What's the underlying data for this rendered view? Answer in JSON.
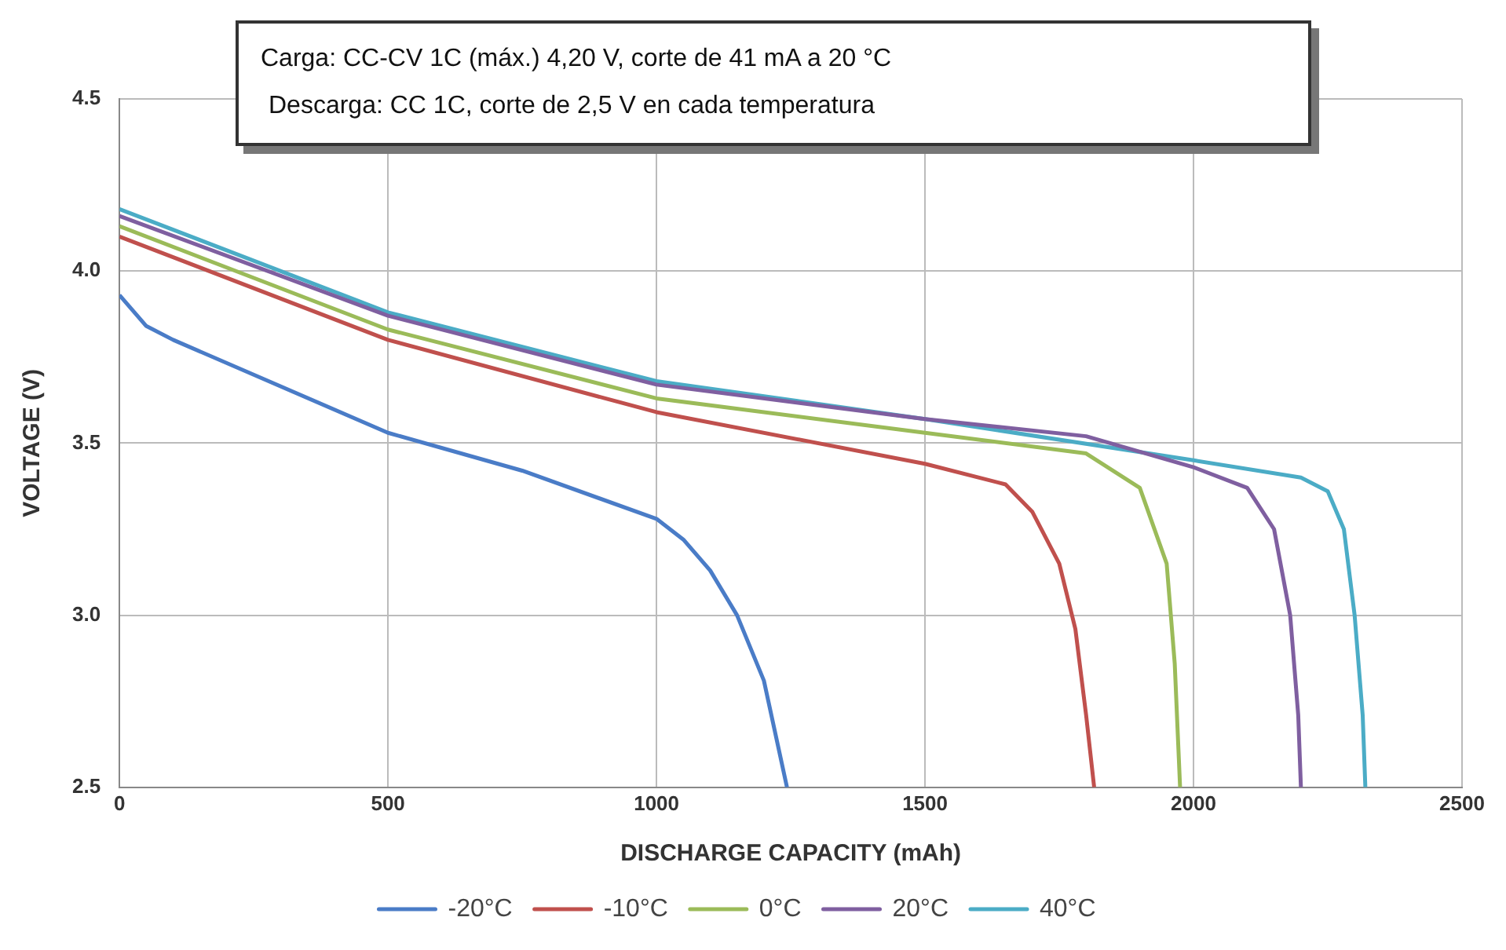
{
  "chart_data": {
    "type": "line",
    "xlabel": "DISCHARGE CAPACITY (mAh)",
    "ylabel": "VOLTAGE (V)",
    "annotations": [
      "Carga: CC-CV 1C (máx.) 4,20 V, corte de 41 mA a 20 °C",
      "Descarga: CC 1C, corte de 2,5 V en cada temperatura"
    ],
    "xlim": [
      0,
      2500
    ],
    "xticks": [
      0,
      500,
      1000,
      1500,
      2000,
      2500
    ],
    "ylim": [
      2.5,
      4.5
    ],
    "yticks": [
      {
        "value": 2.5,
        "label": "2.5"
      },
      {
        "value": 3,
        "label": "3.0"
      },
      {
        "value": 3.5,
        "label": "3.5"
      },
      {
        "value": 4,
        "label": "4.0"
      },
      {
        "value": 4.5,
        "label": "4.5"
      }
    ],
    "grid": true,
    "legend": "bottom",
    "marker": "none",
    "line_style": "solid",
    "series": [
      {
        "name": "-20°C",
        "color": "#4a7cc7",
        "x": [
          0,
          50,
          100,
          500,
          750,
          1000,
          1050,
          1100,
          1150,
          1200,
          1243
        ],
        "values": [
          3.93,
          3.84,
          3.8,
          3.53,
          3.42,
          3.28,
          3.22,
          3.13,
          3.0,
          2.81,
          2.5
        ]
      },
      {
        "name": "-10°C",
        "color": "#c0504d",
        "x": [
          0,
          500,
          1000,
          1500,
          1650,
          1700,
          1750,
          1780,
          1800,
          1815
        ],
        "values": [
          4.1,
          3.8,
          3.59,
          3.44,
          3.38,
          3.3,
          3.15,
          2.96,
          2.71,
          2.5
        ]
      },
      {
        "name": "0°C",
        "color": "#9bbb59",
        "x": [
          0,
          500,
          1000,
          1500,
          1800,
          1900,
          1950,
          1965,
          1975
        ],
        "values": [
          4.13,
          3.83,
          3.63,
          3.53,
          3.47,
          3.37,
          3.15,
          2.86,
          2.5
        ]
      },
      {
        "name": "20°C",
        "color": "#7f5fa0",
        "x": [
          0,
          500,
          1000,
          1500,
          1800,
          2000,
          2100,
          2150,
          2180,
          2195,
          2200
        ],
        "values": [
          4.16,
          3.87,
          3.67,
          3.57,
          3.52,
          3.43,
          3.37,
          3.25,
          3.0,
          2.71,
          2.5
        ]
      },
      {
        "name": "40°C",
        "color": "#4bacc6",
        "x": [
          0,
          500,
          1000,
          1500,
          2000,
          2200,
          2250,
          2280,
          2300,
          2315,
          2320
        ],
        "values": [
          4.18,
          3.88,
          3.68,
          3.57,
          3.45,
          3.4,
          3.36,
          3.25,
          3.0,
          2.71,
          2.5
        ]
      }
    ]
  }
}
